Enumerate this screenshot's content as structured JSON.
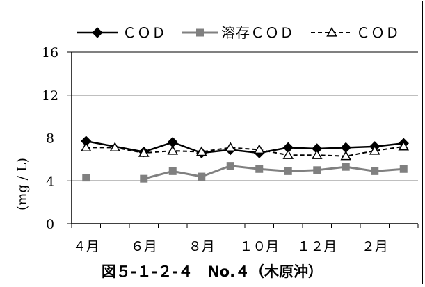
{
  "chart_data": {
    "type": "line",
    "title": "図５-１-２-４　No.４（木原沖）",
    "ylabel": "(mg / L)",
    "xlabel": "",
    "ylim": [
      0,
      16
    ],
    "yticks": [
      "0",
      "4",
      "8",
      "12",
      "16"
    ],
    "xtick_labels": [
      {
        "index": 0,
        "label": "４月"
      },
      {
        "index": 2,
        "label": "６月"
      },
      {
        "index": 4,
        "label": "８月"
      },
      {
        "index": 6,
        "label": "１０月"
      },
      {
        "index": 8,
        "label": "１２月"
      },
      {
        "index": 10,
        "label": "２月"
      }
    ],
    "months_count": 12,
    "grid": "horizontal",
    "legend_placement": "top",
    "series": [
      {
        "name": "ＣＯＤ",
        "style": "solid-diamond",
        "color": "#000000",
        "points": [
          {
            "i": 0,
            "v": 7.7
          },
          {
            "i": 2,
            "v": 6.7
          },
          {
            "i": 3,
            "v": 7.6
          },
          {
            "i": 4,
            "v": 6.6
          },
          {
            "i": 5,
            "v": 6.9
          },
          {
            "i": 6,
            "v": 6.6
          },
          {
            "i": 7,
            "v": 7.1
          },
          {
            "i": 8,
            "v": 7.0
          },
          {
            "i": 9,
            "v": 7.1
          },
          {
            "i": 10,
            "v": 7.2
          },
          {
            "i": 11,
            "v": 7.5
          }
        ]
      },
      {
        "name": "溶存ＣＯＤ",
        "style": "solid-square",
        "color": "#808080",
        "points": [
          {
            "i": 0,
            "v": 4.3,
            "break_after": true
          },
          {
            "i": 2,
            "v": 4.2
          },
          {
            "i": 3,
            "v": 4.9
          },
          {
            "i": 4,
            "v": 4.4
          },
          {
            "i": 5,
            "v": 5.4
          },
          {
            "i": 6,
            "v": 5.1
          },
          {
            "i": 7,
            "v": 4.9
          },
          {
            "i": 8,
            "v": 5.0
          },
          {
            "i": 9,
            "v": 5.3
          },
          {
            "i": 10,
            "v": 4.9
          },
          {
            "i": 11,
            "v": 5.1
          }
        ]
      },
      {
        "name": "ＣＯＤ",
        "style": "dashed-triangle",
        "color": "#000000",
        "points": [
          {
            "i": 0,
            "v": 7.1
          },
          {
            "i": 1,
            "v": 7.1
          },
          {
            "i": 2,
            "v": 6.6
          },
          {
            "i": 3,
            "v": 6.8
          },
          {
            "i": 4,
            "v": 6.7
          },
          {
            "i": 5,
            "v": 7.1
          },
          {
            "i": 6,
            "v": 6.9
          },
          {
            "i": 7,
            "v": 6.4
          },
          {
            "i": 8,
            "v": 6.4
          },
          {
            "i": 9,
            "v": 6.3
          },
          {
            "i": 10,
            "v": 6.8
          },
          {
            "i": 11,
            "v": 7.2
          }
        ]
      }
    ]
  }
}
